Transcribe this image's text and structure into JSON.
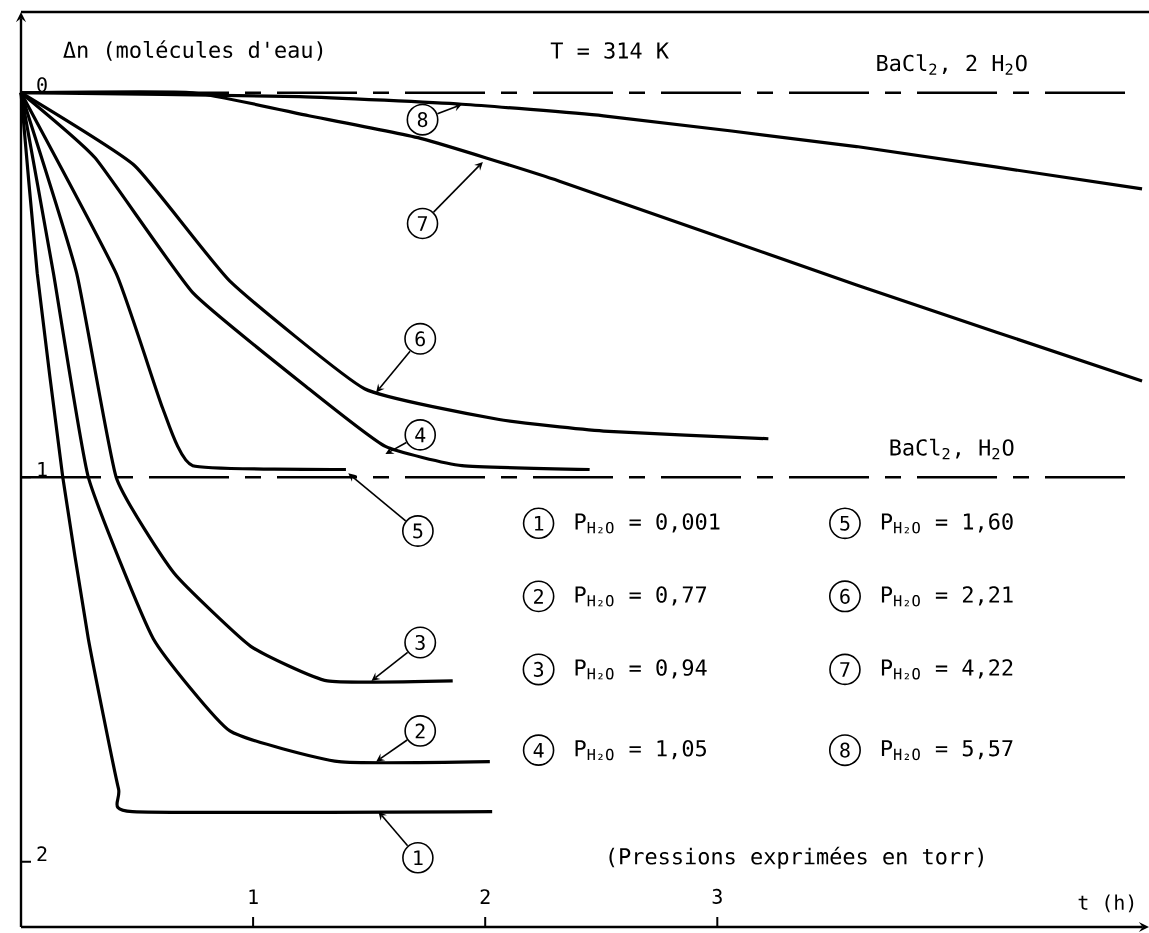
{
  "chart_data": {
    "type": "line",
    "xlabel": "t (h)",
    "ylabel": "Δn (molécules d'eau)",
    "xlim": [
      0,
      4.86
    ],
    "ylim": [
      -2.17,
      0.21
    ],
    "xticks": [
      1,
      2,
      3
    ],
    "yticks": [
      {
        "value": 0,
        "label": "0"
      },
      {
        "value": -1,
        "label": "1"
      },
      {
        "value": -2,
        "label": "2"
      }
    ],
    "grid": false,
    "legend": "bottom",
    "marker": "none",
    "line_style": "solid",
    "series": [
      {
        "name": "1",
        "color": "#000000",
        "x": [
          0,
          0.07,
          0.18,
          0.29,
          0.42,
          0.48,
          2.03
        ],
        "values": [
          0,
          -0.47,
          -1,
          -1.42,
          -1.81,
          -1.87,
          -1.87
        ]
      },
      {
        "name": "2",
        "color": "#000000",
        "x": [
          0,
          0.14,
          0.29,
          0.57,
          0.9,
          1.37,
          2.02
        ],
        "values": [
          0,
          -0.47,
          -1,
          -1.42,
          -1.66,
          -1.74,
          -1.74
        ]
      },
      {
        "name": "3",
        "color": "#000000",
        "x": [
          0,
          0.24,
          0.41,
          0.66,
          0.99,
          1.32,
          1.86
        ],
        "values": [
          0,
          -0.47,
          -1,
          -1.25,
          -1.44,
          -1.53,
          -1.53
        ]
      },
      {
        "name": "4",
        "color": "#000000",
        "x": [
          0,
          0.32,
          0.74,
          1.24,
          1.57,
          1.9,
          2.45
        ],
        "values": [
          0,
          -0.17,
          -0.52,
          -0.77,
          -0.92,
          -0.97,
          -0.98
        ]
      },
      {
        "name": "5",
        "color": "#000000",
        "x": [
          0,
          0.41,
          0.61,
          0.74,
          1.4
        ],
        "values": [
          0,
          -0.47,
          -0.82,
          -0.97,
          -0.98
        ]
      },
      {
        "name": "6",
        "color": "#000000",
        "x": [
          0,
          0.49,
          0.9,
          1.48,
          2.06,
          2.51,
          3.22
        ],
        "values": [
          0,
          -0.19,
          -0.49,
          -0.77,
          -0.85,
          -0.88,
          -0.9
        ]
      },
      {
        "name": "7",
        "color": "#000000",
        "x": [
          0,
          0.74,
          1.24,
          1.73,
          2.32,
          3.6,
          4.83
        ],
        "values": [
          0,
          0,
          -0.06,
          -0.12,
          -0.23,
          -0.5,
          -0.75
        ]
      },
      {
        "name": "8",
        "color": "#000000",
        "x": [
          0,
          1.2,
          1.9,
          2.51,
          3.6,
          4.83
        ],
        "values": [
          0,
          -0.01,
          -0.03,
          -0.06,
          -0.14,
          -0.25
        ]
      }
    ],
    "ref_lines": [
      {
        "axis": "y",
        "value": 0,
        "label": "BaCl$_{2}$, 2 H$_{2}$O",
        "line_style": "dashed"
      },
      {
        "axis": "y",
        "value": -1,
        "label": "BaCl$_{2}$, H$_{2}$O",
        "line_style": "dashed"
      }
    ],
    "annotations": [
      "T = 314 K",
      "P$_{H₂O}$ = 0,001",
      "P$_{H₂O}$ = 0,77",
      "P$_{H₂O}$ = 0,94",
      "P$_{H₂O}$ = 1,05",
      "P$_{H₂O}$ = 1,60",
      "P$_{H₂O}$ = 2,21",
      "P$_{H₂O}$ = 4,22",
      "P$_{H₂O}$ = 5,57",
      "(Pressions exprimées en torr)"
    ]
  }
}
